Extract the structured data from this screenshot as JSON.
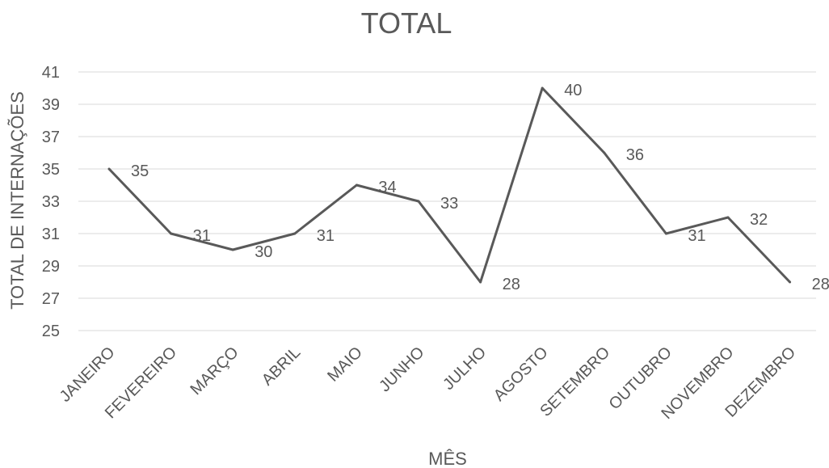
{
  "chart_data": {
    "type": "line",
    "title": "TOTAL",
    "xlabel": "MÊS",
    "ylabel": "TOTAL DE INTERNAÇÕES",
    "categories": [
      "JANEIRO",
      "FEVEREIRO",
      "MARÇO",
      "ABRIL",
      "MAIO",
      "JUNHO",
      "JULHO",
      "AGOSTO",
      "SETEMBRO",
      "OUTUBRO",
      "NOVEMBRO",
      "DEZEMBRO"
    ],
    "values": [
      35,
      31,
      30,
      31,
      34,
      33,
      28,
      40,
      36,
      31,
      32,
      28
    ],
    "ylim": [
      25,
      41
    ],
    "yticks": [
      25,
      27,
      29,
      31,
      33,
      35,
      37,
      39,
      41
    ],
    "grid": true,
    "legend": "none",
    "colors": {
      "line": "#595959",
      "grid": "#d9d9d9",
      "text": "#595959"
    }
  }
}
